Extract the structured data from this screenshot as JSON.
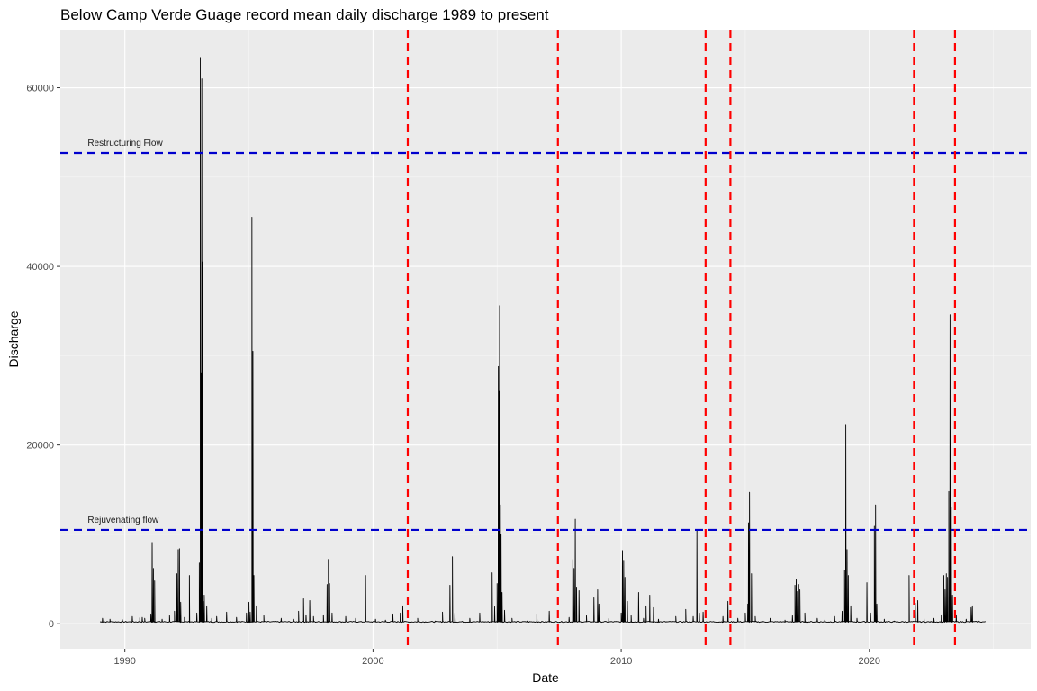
{
  "chart_data": {
    "type": "line",
    "title": "Below Camp Verde Guage record mean daily discharge 1989 to present",
    "xlabel": "Date",
    "ylabel": "Discharge",
    "xlim": [
      1987.4,
      2026.5
    ],
    "ylim": [
      -2800,
      66500
    ],
    "x_ticks": [
      1990,
      2000,
      2010,
      2020
    ],
    "y_ticks": [
      0,
      20000,
      40000,
      60000
    ],
    "x_minor_ticks": [
      1995,
      2005,
      2015,
      2025
    ],
    "y_minor_ticks": [
      10000,
      30000,
      50000
    ],
    "grid": true,
    "panel_background": "#ebebeb",
    "series": [
      {
        "color": "#000000",
        "x_start": 1989.0,
        "x_end": 2024.7,
        "baseline": 150,
        "peaks": [
          [
            1989.1,
            600
          ],
          [
            1989.4,
            500
          ],
          [
            1989.9,
            450
          ],
          [
            1990.3,
            800
          ],
          [
            1990.6,
            650
          ],
          [
            1990.7,
            700
          ],
          [
            1990.8,
            600
          ],
          [
            1991.05,
            1100
          ],
          [
            1991.1,
            9100
          ],
          [
            1991.15,
            6200
          ],
          [
            1991.2,
            4800
          ],
          [
            1991.5,
            500
          ],
          [
            1991.8,
            900
          ],
          [
            1992.0,
            1400
          ],
          [
            1992.1,
            5600
          ],
          [
            1992.15,
            8300
          ],
          [
            1992.2,
            8400
          ],
          [
            1992.25,
            2400
          ],
          [
            1992.4,
            700
          ],
          [
            1992.6,
            5400
          ],
          [
            1992.9,
            1200
          ],
          [
            1993.0,
            6800
          ],
          [
            1993.04,
            63400
          ],
          [
            1993.07,
            28000
          ],
          [
            1993.1,
            61000
          ],
          [
            1993.13,
            40500
          ],
          [
            1993.16,
            2500
          ],
          [
            1993.2,
            3200
          ],
          [
            1993.3,
            2000
          ],
          [
            1993.5,
            600
          ],
          [
            1993.7,
            800
          ],
          [
            1994.1,
            1300
          ],
          [
            1994.5,
            700
          ],
          [
            1994.9,
            1200
          ],
          [
            1995.0,
            2400
          ],
          [
            1995.05,
            1300
          ],
          [
            1995.12,
            45500
          ],
          [
            1995.16,
            30500
          ],
          [
            1995.2,
            5400
          ],
          [
            1995.3,
            2000
          ],
          [
            1995.6,
            900
          ],
          [
            1996.3,
            600
          ],
          [
            1996.8,
            500
          ],
          [
            1997.0,
            1400
          ],
          [
            1997.2,
            2800
          ],
          [
            1997.3,
            1000
          ],
          [
            1997.45,
            2600
          ],
          [
            1997.6,
            800
          ],
          [
            1998.0,
            1000
          ],
          [
            1998.15,
            4400
          ],
          [
            1998.2,
            7200
          ],
          [
            1998.25,
            4500
          ],
          [
            1998.35,
            1200
          ],
          [
            1998.9,
            800
          ],
          [
            1999.3,
            600
          ],
          [
            1999.7,
            5400
          ],
          [
            2000.1,
            500
          ],
          [
            2000.5,
            400
          ],
          [
            2000.8,
            1100
          ],
          [
            2001.1,
            1200
          ],
          [
            2001.2,
            2000
          ],
          [
            2001.8,
            600
          ],
          [
            2002.5,
            300
          ],
          [
            2002.8,
            1300
          ],
          [
            2003.1,
            4300
          ],
          [
            2003.2,
            7500
          ],
          [
            2003.3,
            1200
          ],
          [
            2003.9,
            600
          ],
          [
            2004.3,
            1200
          ],
          [
            2004.8,
            5700
          ],
          [
            2004.9,
            1900
          ],
          [
            2005.0,
            4500
          ],
          [
            2005.05,
            28800
          ],
          [
            2005.08,
            26000
          ],
          [
            2005.1,
            35600
          ],
          [
            2005.13,
            13300
          ],
          [
            2005.16,
            10000
          ],
          [
            2005.2,
            3500
          ],
          [
            2005.3,
            1500
          ],
          [
            2005.6,
            600
          ],
          [
            2006.2,
            300
          ],
          [
            2006.6,
            1100
          ],
          [
            2007.1,
            1400
          ],
          [
            2007.9,
            700
          ],
          [
            2008.05,
            7200
          ],
          [
            2008.1,
            6200
          ],
          [
            2008.15,
            11700
          ],
          [
            2008.2,
            4100
          ],
          [
            2008.3,
            3700
          ],
          [
            2008.6,
            900
          ],
          [
            2008.9,
            2900
          ],
          [
            2009.05,
            3800
          ],
          [
            2009.1,
            2200
          ],
          [
            2009.5,
            600
          ],
          [
            2010.0,
            1200
          ],
          [
            2010.05,
            8200
          ],
          [
            2010.1,
            7100
          ],
          [
            2010.15,
            5200
          ],
          [
            2010.25,
            2500
          ],
          [
            2010.4,
            900
          ],
          [
            2010.7,
            3500
          ],
          [
            2010.9,
            600
          ],
          [
            2011.0,
            2000
          ],
          [
            2011.15,
            3200
          ],
          [
            2011.3,
            1800
          ],
          [
            2011.5,
            500
          ],
          [
            2012.2,
            800
          ],
          [
            2012.6,
            1600
          ],
          [
            2012.9,
            800
          ],
          [
            2013.05,
            10500
          ],
          [
            2013.15,
            1200
          ],
          [
            2013.3,
            1300
          ],
          [
            2014.1,
            800
          ],
          [
            2014.3,
            2500
          ],
          [
            2014.7,
            600
          ],
          [
            2015.0,
            1200
          ],
          [
            2015.1,
            2200
          ],
          [
            2015.13,
            11300
          ],
          [
            2015.17,
            14700
          ],
          [
            2015.25,
            5600
          ],
          [
            2015.4,
            800
          ],
          [
            2016.0,
            600
          ],
          [
            2016.6,
            400
          ],
          [
            2016.9,
            900
          ],
          [
            2017.0,
            4300
          ],
          [
            2017.05,
            5000
          ],
          [
            2017.1,
            3600
          ],
          [
            2017.15,
            4400
          ],
          [
            2017.2,
            3800
          ],
          [
            2017.4,
            1200
          ],
          [
            2017.9,
            600
          ],
          [
            2018.2,
            400
          ],
          [
            2018.6,
            800
          ],
          [
            2018.9,
            1400
          ],
          [
            2019.0,
            6000
          ],
          [
            2019.05,
            22300
          ],
          [
            2019.1,
            8300
          ],
          [
            2019.15,
            5400
          ],
          [
            2019.25,
            2000
          ],
          [
            2019.5,
            600
          ],
          [
            2019.9,
            4600
          ],
          [
            2020.05,
            1200
          ],
          [
            2020.2,
            10900
          ],
          [
            2020.25,
            13300
          ],
          [
            2020.3,
            2200
          ],
          [
            2020.6,
            500
          ],
          [
            2021.0,
            300
          ],
          [
            2021.6,
            5400
          ],
          [
            2021.85,
            2300
          ],
          [
            2021.95,
            2600
          ],
          [
            2022.2,
            800
          ],
          [
            2022.6,
            600
          ],
          [
            2022.9,
            1000
          ],
          [
            2023.0,
            5400
          ],
          [
            2023.05,
            3800
          ],
          [
            2023.1,
            5600
          ],
          [
            2023.15,
            5200
          ],
          [
            2023.2,
            14800
          ],
          [
            2023.25,
            34600
          ],
          [
            2023.3,
            13000
          ],
          [
            2023.35,
            3200
          ],
          [
            2023.5,
            1000
          ],
          [
            2023.9,
            500
          ],
          [
            2024.1,
            1800
          ],
          [
            2024.15,
            2000
          ],
          [
            2024.4,
            300
          ]
        ]
      }
    ],
    "reference_lines": [
      {
        "orientation": "horizontal",
        "value": 52700,
        "color": "#0000cd",
        "style": "dashed",
        "label": "Restructuring Flow",
        "label_x": 1988.5
      },
      {
        "orientation": "horizontal",
        "value": 10500,
        "color": "#0000cd",
        "style": "dashed",
        "label": "Rejuvenating  flow",
        "label_x": 1988.5
      },
      {
        "orientation": "vertical",
        "value": 2001.4,
        "color": "#ff0000",
        "style": "dashed"
      },
      {
        "orientation": "vertical",
        "value": 2007.45,
        "color": "#ff0000",
        "style": "dashed"
      },
      {
        "orientation": "vertical",
        "value": 2013.4,
        "color": "#ff0000",
        "style": "dashed"
      },
      {
        "orientation": "vertical",
        "value": 2014.4,
        "color": "#ff0000",
        "style": "dashed"
      },
      {
        "orientation": "vertical",
        "value": 2021.8,
        "color": "#ff0000",
        "style": "dashed"
      },
      {
        "orientation": "vertical",
        "value": 2023.45,
        "color": "#ff0000",
        "style": "dashed"
      }
    ]
  }
}
